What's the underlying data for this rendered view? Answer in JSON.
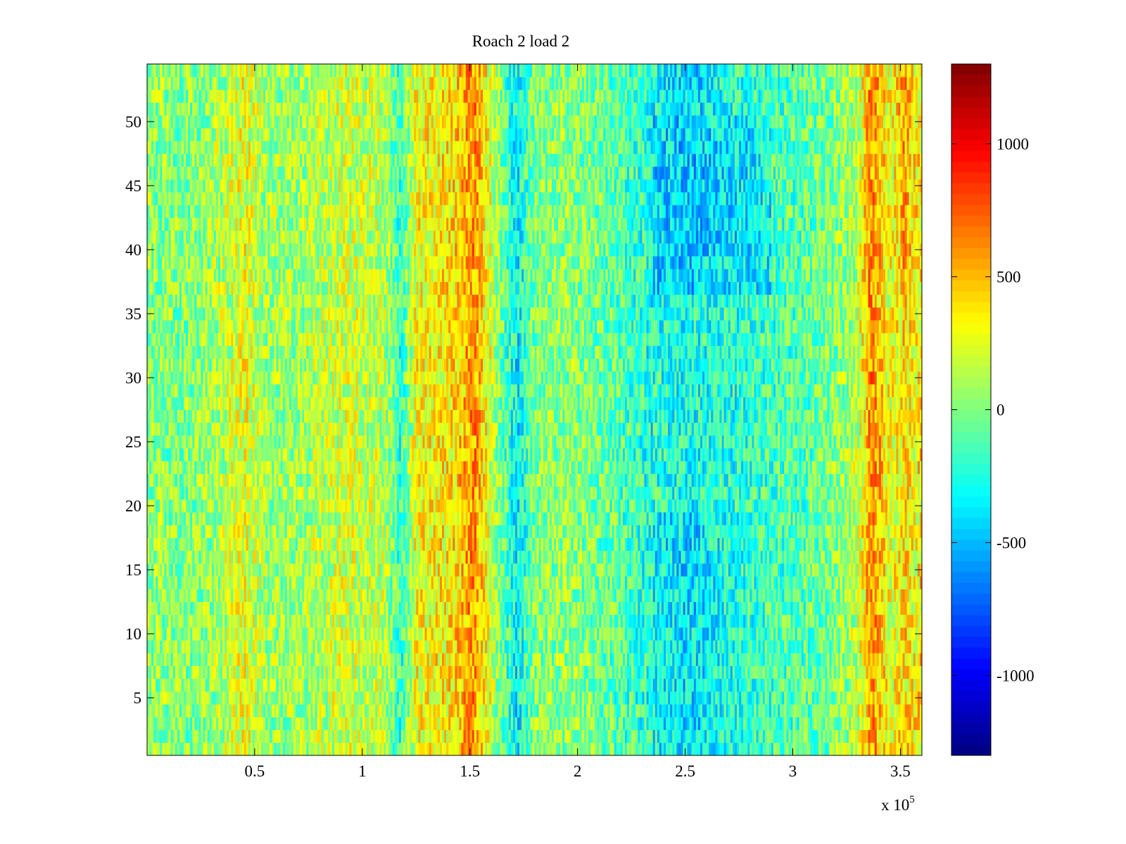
{
  "chart_data": {
    "type": "heatmap",
    "title": "Roach 2 load 2",
    "xlabel": "",
    "ylabel": "",
    "x_multiplier_label": {
      "base": "x 10",
      "exponent": "5"
    },
    "xlim": [
      0,
      360000
    ],
    "ylim": [
      0.5,
      54.5
    ],
    "x_ticks": [
      {
        "value": 50000,
        "label": "0.5"
      },
      {
        "value": 100000,
        "label": "1"
      },
      {
        "value": 150000,
        "label": "1.5"
      },
      {
        "value": 200000,
        "label": "2"
      },
      {
        "value": 250000,
        "label": "2.5"
      },
      {
        "value": 300000,
        "label": "3"
      },
      {
        "value": 350000,
        "label": "3.5"
      }
    ],
    "y_ticks": [
      {
        "value": 5,
        "label": "5"
      },
      {
        "value": 10,
        "label": "10"
      },
      {
        "value": 15,
        "label": "15"
      },
      {
        "value": 20,
        "label": "20"
      },
      {
        "value": 25,
        "label": "25"
      },
      {
        "value": 30,
        "label": "30"
      },
      {
        "value": 35,
        "label": "35"
      },
      {
        "value": 40,
        "label": "40"
      },
      {
        "value": 45,
        "label": "45"
      },
      {
        "value": 50,
        "label": "50"
      }
    ],
    "rows": 54,
    "colormap": "jet",
    "clim": [
      -1300,
      1300
    ],
    "colorbar": {
      "placement": "right",
      "ticks": [
        {
          "value": 1000,
          "label": "1000"
        },
        {
          "value": 500,
          "label": "500"
        },
        {
          "value": 0,
          "label": "0"
        },
        {
          "value": -500,
          "label": "-500"
        },
        {
          "value": -1000,
          "label": "-1000"
        }
      ]
    },
    "column_profile": [
      {
        "x": 0,
        "value": 50
      },
      {
        "x": 20000,
        "value": 0
      },
      {
        "x": 35000,
        "value": 120
      },
      {
        "x": 45000,
        "value": 280
      },
      {
        "x": 55000,
        "value": 80
      },
      {
        "x": 70000,
        "value": 80
      },
      {
        "x": 90000,
        "value": 200
      },
      {
        "x": 110000,
        "value": 150
      },
      {
        "x": 118000,
        "value": -200
      },
      {
        "x": 125000,
        "value": 300
      },
      {
        "x": 140000,
        "value": 350
      },
      {
        "x": 152000,
        "value": 600
      },
      {
        "x": 158000,
        "value": 300
      },
      {
        "x": 165000,
        "value": -50
      },
      {
        "x": 172000,
        "value": -350
      },
      {
        "x": 180000,
        "value": 0
      },
      {
        "x": 195000,
        "value": 50
      },
      {
        "x": 210000,
        "value": -50
      },
      {
        "x": 225000,
        "value": -150
      },
      {
        "x": 240000,
        "value": -350
      },
      {
        "x": 255000,
        "value": -400
      },
      {
        "x": 270000,
        "value": -250
      },
      {
        "x": 290000,
        "value": -150
      },
      {
        "x": 305000,
        "value": -100
      },
      {
        "x": 320000,
        "value": 0
      },
      {
        "x": 330000,
        "value": 150
      },
      {
        "x": 336000,
        "value": 600
      },
      {
        "x": 340000,
        "value": 500
      },
      {
        "x": 345000,
        "value": 250
      },
      {
        "x": 352000,
        "value": 550
      },
      {
        "x": 356000,
        "value": 350
      },
      {
        "x": 360000,
        "value": 400
      }
    ],
    "regions": [
      {
        "x_range": [
          235000,
          290000
        ],
        "y_range": [
          37,
          50
        ],
        "value": -500
      },
      {
        "x_range": [
          235000,
          270000
        ],
        "y_range": [
          20,
          37
        ],
        "value": -150
      },
      {
        "x_range": [
          345000,
          358000
        ],
        "y_range": [
          5,
          37
        ],
        "value": 250
      }
    ]
  }
}
